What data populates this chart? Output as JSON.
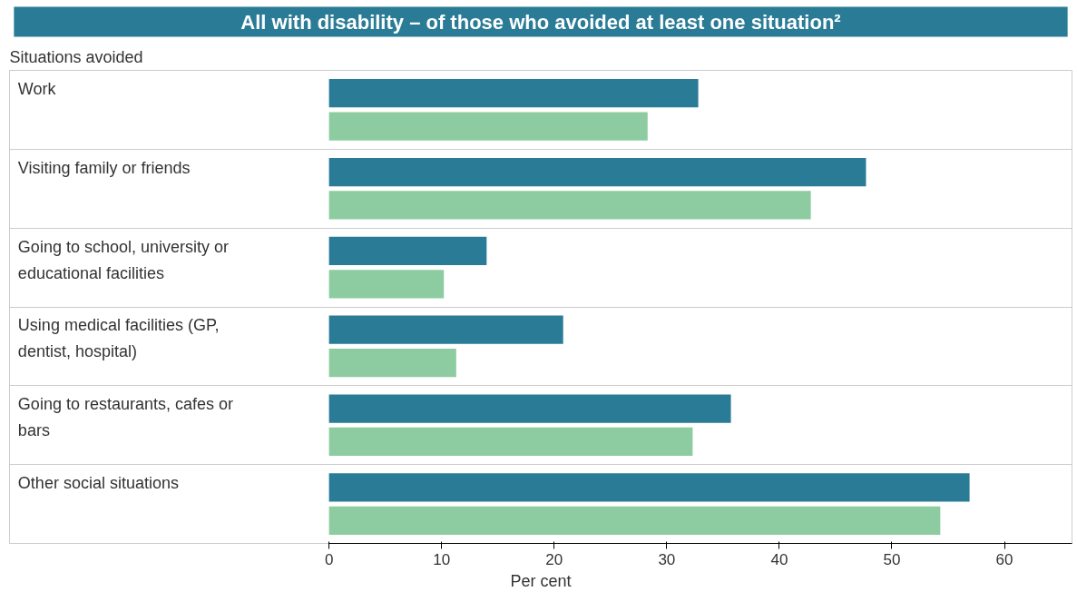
{
  "chart_data": {
    "type": "bar",
    "orientation": "horizontal",
    "title": "All with disability – of those who avoided at least one situation²",
    "ylabel": "Situations avoided",
    "xlabel": "Per cent",
    "categories": [
      "Work",
      "Visiting family or friends",
      "Going to school, university or educational facilities",
      "Using medical facilities (GP, dentist, hospital)",
      "Going to restaurants, cafes or bars",
      "Other social situations"
    ],
    "series": [
      {
        "color": "#2a7b96",
        "values": [
          32.8,
          47.7,
          14.0,
          20.8,
          35.7,
          56.9
        ]
      },
      {
        "color": "#8dcca0",
        "values": [
          28.3,
          42.8,
          10.2,
          11.3,
          32.3,
          54.3
        ]
      }
    ],
    "xlim": [
      0,
      66
    ],
    "xticks": [
      0,
      10,
      20,
      30,
      40,
      50,
      60
    ],
    "grid": "y"
  }
}
